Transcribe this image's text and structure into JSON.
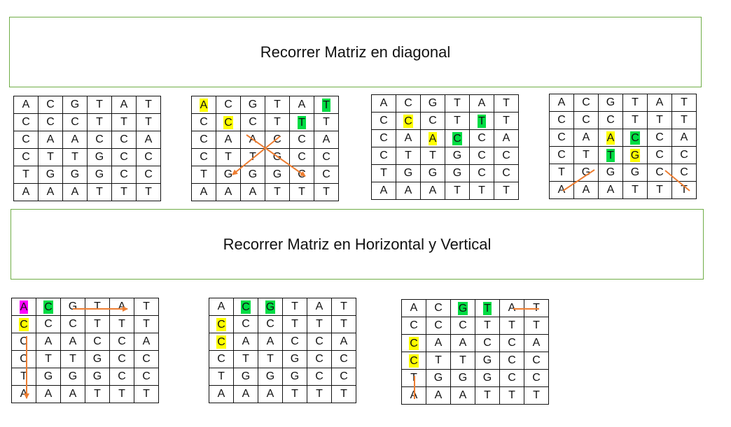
{
  "banners": {
    "diagonal": "Recorrer Matriz en diagonal",
    "horizontal_vertical": "Recorrer Matriz en Horizontal y Vertical"
  },
  "colors": {
    "yellow": "#ffff00",
    "green": "#00dd44",
    "magenta": "#ff00ff",
    "arrow": "#ed7d31",
    "border": "#70ad47"
  },
  "matrices": [
    {
      "rows": [
        "ACGTAT",
        "CCCTTT",
        "CAACCA",
        "CTTGCC",
        "TGGGCC",
        "AAATTT"
      ],
      "highlights": []
    },
    {
      "rows": [
        "ACGTAT",
        "CCCTTT",
        "CAACCA",
        "CTTGCC",
        "TGGGCC",
        "AAATTT"
      ],
      "highlights": [
        {
          "r": 0,
          "c": 0,
          "color": "yellow"
        },
        {
          "r": 1,
          "c": 1,
          "color": "yellow"
        },
        {
          "r": 0,
          "c": 5,
          "color": "green"
        },
        {
          "r": 1,
          "c": 4,
          "color": "green"
        }
      ]
    },
    {
      "rows": [
        "ACGTAT",
        "CCCTTT",
        "CAACCA",
        "CTTGCC",
        "TGGGCC",
        "AAATTT"
      ],
      "highlights": [
        {
          "r": 1,
          "c": 1,
          "color": "yellow"
        },
        {
          "r": 2,
          "c": 2,
          "color": "yellow"
        },
        {
          "r": 1,
          "c": 4,
          "color": "green"
        },
        {
          "r": 2,
          "c": 3,
          "color": "green"
        }
      ]
    },
    {
      "rows": [
        "ACGTAT",
        "CCCTTT",
        "CAACCA",
        "CTTGCC",
        "TGGGCC",
        "AAATTT"
      ],
      "highlights": [
        {
          "r": 2,
          "c": 2,
          "color": "yellow"
        },
        {
          "r": 3,
          "c": 3,
          "color": "yellow"
        },
        {
          "r": 2,
          "c": 3,
          "color": "green"
        },
        {
          "r": 3,
          "c": 2,
          "color": "green"
        }
      ]
    },
    {
      "rows": [
        "ACGTAT",
        "CCCTTT",
        "CAACCA",
        "CTTGCC",
        "TGGGCC",
        "AAATTT"
      ],
      "highlights": [
        {
          "r": 0,
          "c": 0,
          "color": "magenta"
        },
        {
          "r": 1,
          "c": 0,
          "color": "yellow"
        },
        {
          "r": 0,
          "c": 1,
          "color": "green"
        }
      ]
    },
    {
      "rows": [
        "ACGTAT",
        "CCCTTT",
        "CAACCA",
        "CTTGCC",
        "TGGGCC",
        "AAATTT"
      ],
      "highlights": [
        {
          "r": 1,
          "c": 0,
          "color": "yellow"
        },
        {
          "r": 2,
          "c": 0,
          "color": "yellow"
        },
        {
          "r": 0,
          "c": 1,
          "color": "green"
        },
        {
          "r": 0,
          "c": 2,
          "color": "green"
        }
      ]
    },
    {
      "rows": [
        "ACGTAT",
        "CCCTTT",
        "CAACCA",
        "CTTGCC",
        "TGGGCC",
        "AAATTT"
      ],
      "highlights": [
        {
          "r": 2,
          "c": 0,
          "color": "yellow"
        },
        {
          "r": 3,
          "c": 0,
          "color": "yellow"
        },
        {
          "r": 0,
          "c": 2,
          "color": "green"
        },
        {
          "r": 0,
          "c": 3,
          "color": "green"
        }
      ]
    }
  ]
}
